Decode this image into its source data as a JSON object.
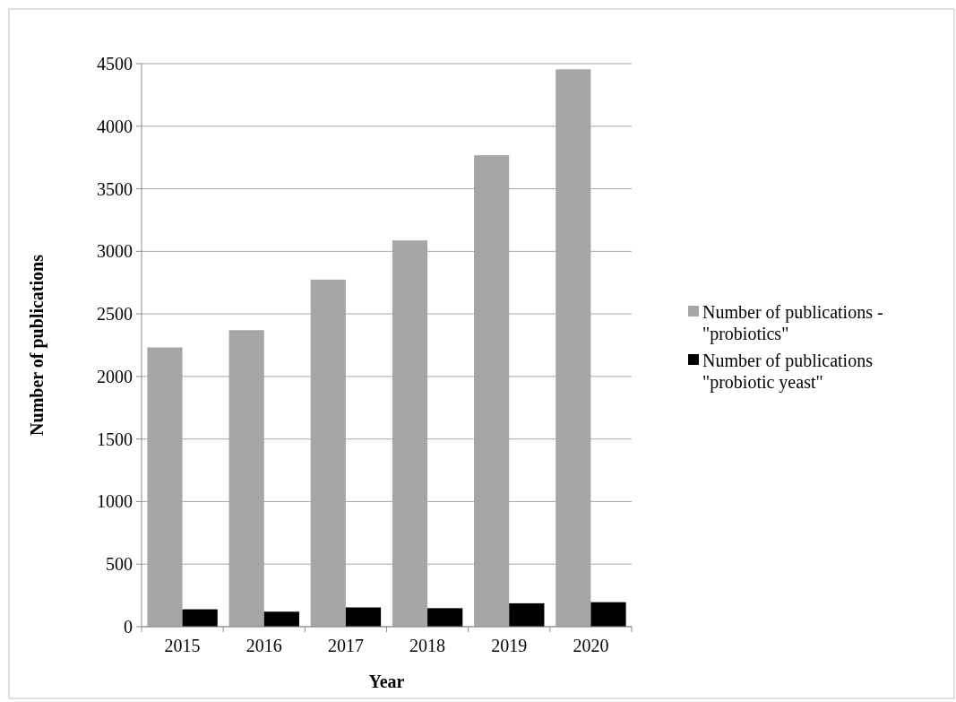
{
  "chart_data": {
    "type": "bar",
    "xlabel": "Year",
    "ylabel": "Number of publications",
    "categories": [
      "2015",
      "2016",
      "2017",
      "2018",
      "2019",
      "2020"
    ],
    "series": [
      {
        "name": "Number of publications - \"probiotics\"",
        "color": "#a6a6a6",
        "values": [
          2232,
          2370,
          2774,
          3087,
          3768,
          4455
        ]
      },
      {
        "name": "Number of publications \"probiotic yeast\"",
        "color": "#000000",
        "values": [
          139,
          120,
          154,
          148,
          187,
          196
        ]
      }
    ],
    "ylim": [
      0,
      4500
    ],
    "yticks": [
      0,
      500,
      1000,
      1500,
      2000,
      2500,
      3000,
      3500,
      4000,
      4500
    ],
    "grid": "y",
    "legend": "right"
  }
}
